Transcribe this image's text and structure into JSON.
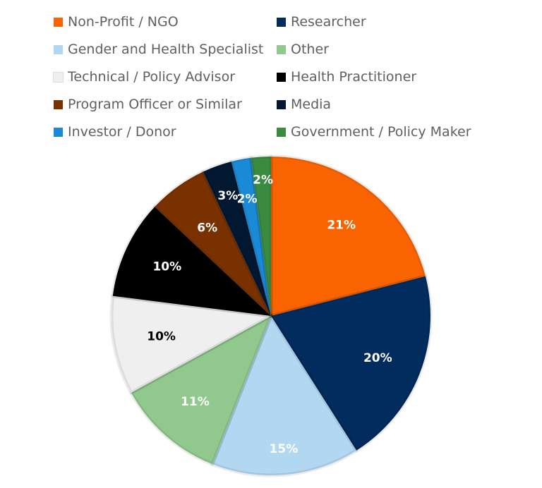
{
  "chart_data": {
    "type": "pie",
    "title": "",
    "legend_position": "top",
    "series": [
      {
        "name": "Non-Profit / NGO",
        "value": 21,
        "label": "21%",
        "color": "#fa6400",
        "label_color": "#ffffff"
      },
      {
        "name": "Researcher",
        "value": 20,
        "label": "20%",
        "color": "#022b5e",
        "label_color": "#ffffff"
      },
      {
        "name": "Gender and Health Specialist",
        "value": 15,
        "label": "15%",
        "color": "#b1d7f1",
        "label_color": "#ffffff"
      },
      {
        "name": "Other",
        "value": 11,
        "label": "11%",
        "color": "#90c88d",
        "label_color": "#ffffff"
      },
      {
        "name": "Technical / Policy Advisor",
        "value": 10,
        "label": "10%",
        "color": "#efefef",
        "label_color": "#000000"
      },
      {
        "name": "Health Practitioner",
        "value": 10,
        "label": "10%",
        "color": "#000000",
        "label_color": "#ffffff"
      },
      {
        "name": "Program Officer or Similar",
        "value": 6,
        "label": "6%",
        "color": "#7a3100",
        "label_color": "#ffffff"
      },
      {
        "name": "Media",
        "value": 3,
        "label": "3%",
        "color": "#011830",
        "label_color": "#ffffff"
      },
      {
        "name": "Investor / Donor",
        "value": 2,
        "label": "2%",
        "color": "#1b8ad6",
        "label_color": "#ffffff"
      },
      {
        "name": "Government / Policy Maker",
        "value": 2,
        "label": "2%",
        "color": "#3a8a40",
        "label_color": "#ffffff"
      }
    ]
  }
}
